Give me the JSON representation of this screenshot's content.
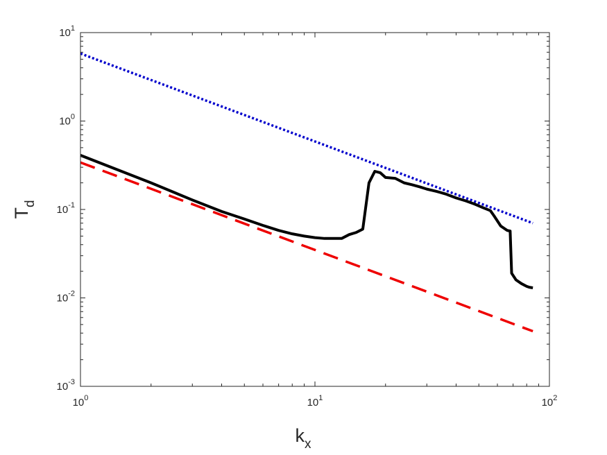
{
  "chart_data": {
    "type": "line",
    "title": "",
    "xscale": "log",
    "yscale": "log",
    "xlim": [
      1,
      100
    ],
    "ylim": [
      0.001,
      10
    ],
    "grid": false,
    "xlabel": {
      "main": "k",
      "sub": "x"
    },
    "ylabel": {
      "main": "T",
      "sub": "d"
    },
    "x_ticks": [
      {
        "value": 1,
        "base": "10",
        "exp": "0"
      },
      {
        "value": 10,
        "base": "10",
        "exp": "1"
      },
      {
        "value": 100,
        "base": "10",
        "exp": "2"
      }
    ],
    "y_ticks": [
      {
        "value": 0.001,
        "base": "10",
        "exp": "-3"
      },
      {
        "value": 0.01,
        "base": "10",
        "exp": "-2"
      },
      {
        "value": 0.1,
        "base": "10",
        "exp": "-1"
      },
      {
        "value": 1,
        "base": "10",
        "exp": "0"
      },
      {
        "value": 10,
        "base": "10",
        "exp": "1"
      }
    ],
    "series": [
      {
        "color": "#0000cc",
        "style": "dotted",
        "points": [
          [
            1,
            5.8
          ],
          [
            85,
            0.07
          ]
        ]
      },
      {
        "color": "#ee0000",
        "style": "dashed",
        "points": [
          [
            1,
            0.34
          ],
          [
            85,
            0.0042
          ]
        ]
      },
      {
        "color": "#000000",
        "style": "solid",
        "points": [
          [
            1,
            0.41
          ],
          [
            2,
            0.2
          ],
          [
            3,
            0.128
          ],
          [
            4,
            0.095
          ],
          [
            5,
            0.078
          ],
          [
            6,
            0.066
          ],
          [
            7,
            0.058
          ],
          [
            8,
            0.053
          ],
          [
            9,
            0.05
          ],
          [
            10,
            0.048
          ],
          [
            11,
            0.047
          ],
          [
            12,
            0.047
          ],
          [
            13,
            0.047
          ],
          [
            14,
            0.052
          ],
          [
            15,
            0.055
          ],
          [
            16,
            0.06
          ],
          [
            17,
            0.2
          ],
          [
            18,
            0.27
          ],
          [
            19,
            0.26
          ],
          [
            20,
            0.23
          ],
          [
            22,
            0.225
          ],
          [
            24,
            0.2
          ],
          [
            26,
            0.19
          ],
          [
            28,
            0.18
          ],
          [
            30,
            0.17
          ],
          [
            33,
            0.16
          ],
          [
            36,
            0.15
          ],
          [
            40,
            0.135
          ],
          [
            44,
            0.125
          ],
          [
            48,
            0.115
          ],
          [
            52,
            0.105
          ],
          [
            56,
            0.097
          ],
          [
            58,
            0.085
          ],
          [
            62,
            0.065
          ],
          [
            66,
            0.058
          ],
          [
            68,
            0.057
          ],
          [
            69,
            0.019
          ],
          [
            72,
            0.016
          ],
          [
            76,
            0.0145
          ],
          [
            80,
            0.0135
          ],
          [
            82,
            0.0132
          ],
          [
            85,
            0.013
          ]
        ]
      }
    ]
  }
}
